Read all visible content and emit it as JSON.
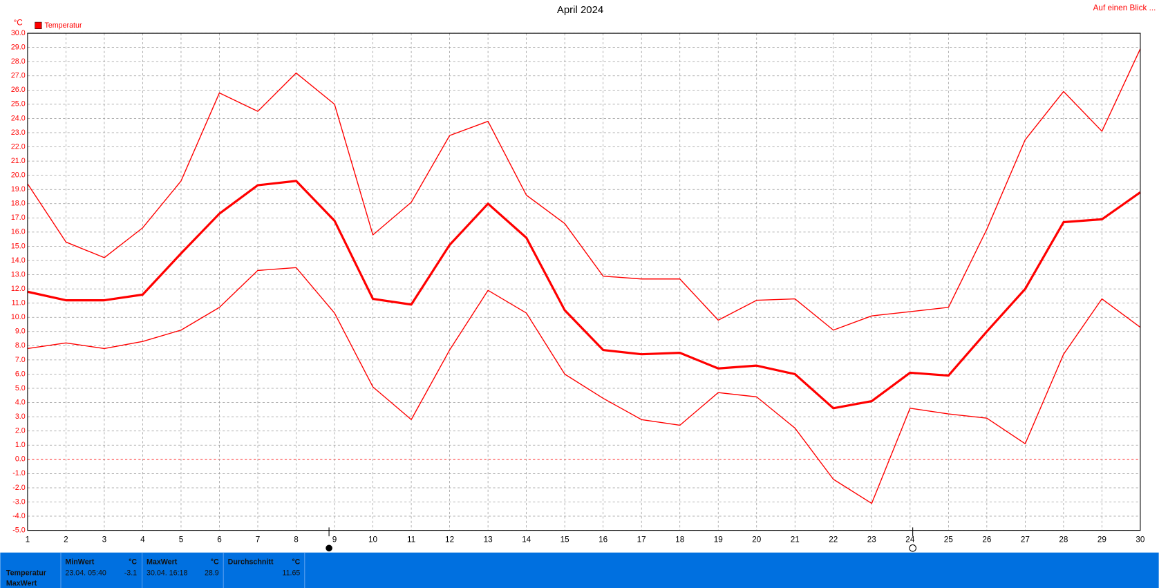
{
  "chart_data": {
    "type": "line",
    "title": "April 2024",
    "y_unit": "°C",
    "link": "Auf einen Blick ...",
    "legend": "Temperatur",
    "x": [
      1,
      2,
      3,
      4,
      5,
      6,
      7,
      8,
      9,
      10,
      11,
      12,
      13,
      14,
      15,
      16,
      17,
      18,
      19,
      20,
      21,
      22,
      23,
      24,
      25,
      26,
      27,
      28,
      29,
      30
    ],
    "xlim": [
      1,
      30
    ],
    "xticks": [
      1,
      2,
      3,
      4,
      5,
      6,
      7,
      8,
      9,
      10,
      11,
      12,
      13,
      14,
      15,
      16,
      17,
      18,
      19,
      20,
      21,
      22,
      23,
      24,
      25,
      26,
      27,
      28,
      29,
      30
    ],
    "ylim": [
      -5,
      30
    ],
    "yticks": [
      {
        "value": 30,
        "label": "30.0"
      },
      {
        "value": 29,
        "label": "29.0"
      },
      {
        "value": 28,
        "label": "28.0"
      },
      {
        "value": 27,
        "label": "27.0"
      },
      {
        "value": 26,
        "label": "26.0"
      },
      {
        "value": 25,
        "label": "25.0"
      },
      {
        "value": 24,
        "label": "24.0"
      },
      {
        "value": 23,
        "label": "23.0"
      },
      {
        "value": 22,
        "label": "22.0"
      },
      {
        "value": 21,
        "label": "21.0"
      },
      {
        "value": 20,
        "label": "20.0"
      },
      {
        "value": 19,
        "label": "19.0"
      },
      {
        "value": 18,
        "label": "18.0"
      },
      {
        "value": 17,
        "label": "17.0"
      },
      {
        "value": 16,
        "label": "16.0"
      },
      {
        "value": 15,
        "label": "15.0"
      },
      {
        "value": 14,
        "label": "14.0"
      },
      {
        "value": 13,
        "label": "13.0"
      },
      {
        "value": 12,
        "label": "12.0"
      },
      {
        "value": 11,
        "label": "11.0"
      },
      {
        "value": 10,
        "label": "10.0"
      },
      {
        "value": 9,
        "label": "9.0"
      },
      {
        "value": 8,
        "label": "8.0"
      },
      {
        "value": 7,
        "label": "7.0"
      },
      {
        "value": 6,
        "label": "6.0"
      },
      {
        "value": 5,
        "label": "5.0"
      },
      {
        "value": 4,
        "label": "4.0"
      },
      {
        "value": 3,
        "label": "3.0"
      },
      {
        "value": 2,
        "label": "2.0"
      },
      {
        "value": 1,
        "label": "1.0"
      },
      {
        "value": 0,
        "label": "0.0"
      },
      {
        "value": -1,
        "label": "-1.0"
      },
      {
        "value": -2,
        "label": "-2.0"
      },
      {
        "value": -3,
        "label": "-3.0"
      },
      {
        "value": -4,
        "label": "-4.0"
      },
      {
        "value": -5,
        "label": "-5.0"
      }
    ],
    "grid": true,
    "color": "#ff0000",
    "series": [
      {
        "line_width": 1.3,
        "values": [
          19.4,
          15.3,
          14.2,
          16.3,
          19.6,
          25.8,
          24.5,
          27.2,
          25.0,
          15.8,
          18.1,
          22.8,
          23.8,
          18.6,
          16.6,
          12.9,
          12.7,
          12.7,
          9.8,
          11.2,
          11.3,
          9.1,
          10.1,
          10.4,
          10.7,
          16.2,
          22.5,
          25.9,
          23.1,
          28.9
        ]
      },
      {
        "line_width": 3,
        "values": [
          11.8,
          11.2,
          11.2,
          11.6,
          14.5,
          17.3,
          19.3,
          19.6,
          16.8,
          11.3,
          10.9,
          15.1,
          18.0,
          15.6,
          10.5,
          7.7,
          7.4,
          7.5,
          6.4,
          6.6,
          6.0,
          3.6,
          4.1,
          6.1,
          5.9,
          9.0,
          12.0,
          16.7,
          16.9,
          18.8
        ]
      },
      {
        "line_width": 1.3,
        "values": [
          7.8,
          8.2,
          7.8,
          8.3,
          9.1,
          10.7,
          13.3,
          13.5,
          10.3,
          5.1,
          2.8,
          7.7,
          11.9,
          10.3,
          6.0,
          4.3,
          2.8,
          2.4,
          4.7,
          4.4,
          2.2,
          -1.4,
          -3.1,
          3.6,
          3.2,
          2.9,
          1.1,
          7.4,
          11.3,
          9.3
        ]
      }
    ]
  },
  "summary": {
    "row_labels": [
      "Temperatur",
      "MaxWert"
    ],
    "columns": [
      {
        "header": "MinWert",
        "unit": "°C",
        "time": "23.04.  05:40",
        "value": -3.1
      },
      {
        "header": "MaxWert",
        "unit": "°C",
        "time": "30.04.  16:18",
        "value": 28.9
      },
      {
        "header": "Durchschnitt",
        "unit": "°C",
        "value": 11.65
      }
    ]
  }
}
